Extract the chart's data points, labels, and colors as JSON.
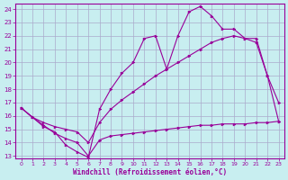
{
  "background_color": "#c8eef0",
  "grid_color": "#aaaacc",
  "line_color": "#990099",
  "xlabel": "Windchill (Refroidissement éolien,°C)",
  "xlim": [
    -0.5,
    23.5
  ],
  "ylim": [
    12.8,
    24.4
  ],
  "yticks": [
    13,
    14,
    15,
    16,
    17,
    18,
    19,
    20,
    21,
    22,
    23,
    24
  ],
  "xticks": [
    0,
    1,
    2,
    3,
    4,
    5,
    6,
    7,
    8,
    9,
    10,
    11,
    12,
    13,
    14,
    15,
    16,
    17,
    18,
    19,
    20,
    21,
    22,
    23
  ],
  "line1_x": [
    0,
    1,
    2,
    3,
    4,
    5,
    6,
    7,
    8,
    9,
    10,
    11,
    12,
    13,
    14,
    15,
    16,
    17,
    18,
    19,
    20,
    21,
    22,
    23
  ],
  "line1_y": [
    16.6,
    15.9,
    15.3,
    14.7,
    14.3,
    14.0,
    13.0,
    14.2,
    14.5,
    14.6,
    14.7,
    14.8,
    14.9,
    15.0,
    15.1,
    15.2,
    15.3,
    15.3,
    15.4,
    15.4,
    15.4,
    15.5,
    15.5,
    15.6
  ],
  "line2_x": [
    0,
    1,
    2,
    3,
    4,
    5,
    6,
    7,
    8,
    9,
    10,
    11,
    12,
    13,
    14,
    15,
    16,
    17,
    18,
    19,
    20,
    21,
    22,
    23
  ],
  "line2_y": [
    16.6,
    15.9,
    15.5,
    15.2,
    15.0,
    14.8,
    14.0,
    15.5,
    16.5,
    17.2,
    17.8,
    18.4,
    19.0,
    19.5,
    20.0,
    20.5,
    21.0,
    21.5,
    21.8,
    22.0,
    21.8,
    21.5,
    19.0,
    17.0
  ],
  "line3_x": [
    0,
    1,
    2,
    3,
    4,
    5,
    6,
    7,
    8,
    9,
    10,
    11,
    12,
    13,
    14,
    15,
    16,
    17,
    18,
    19,
    20,
    21,
    22,
    23
  ],
  "line3_y": [
    16.6,
    15.9,
    15.2,
    14.8,
    13.8,
    13.3,
    12.9,
    16.5,
    18.0,
    19.2,
    20.0,
    21.8,
    22.0,
    19.5,
    22.0,
    23.8,
    24.2,
    23.5,
    22.5,
    22.5,
    21.8,
    21.8,
    19.0,
    15.6
  ]
}
